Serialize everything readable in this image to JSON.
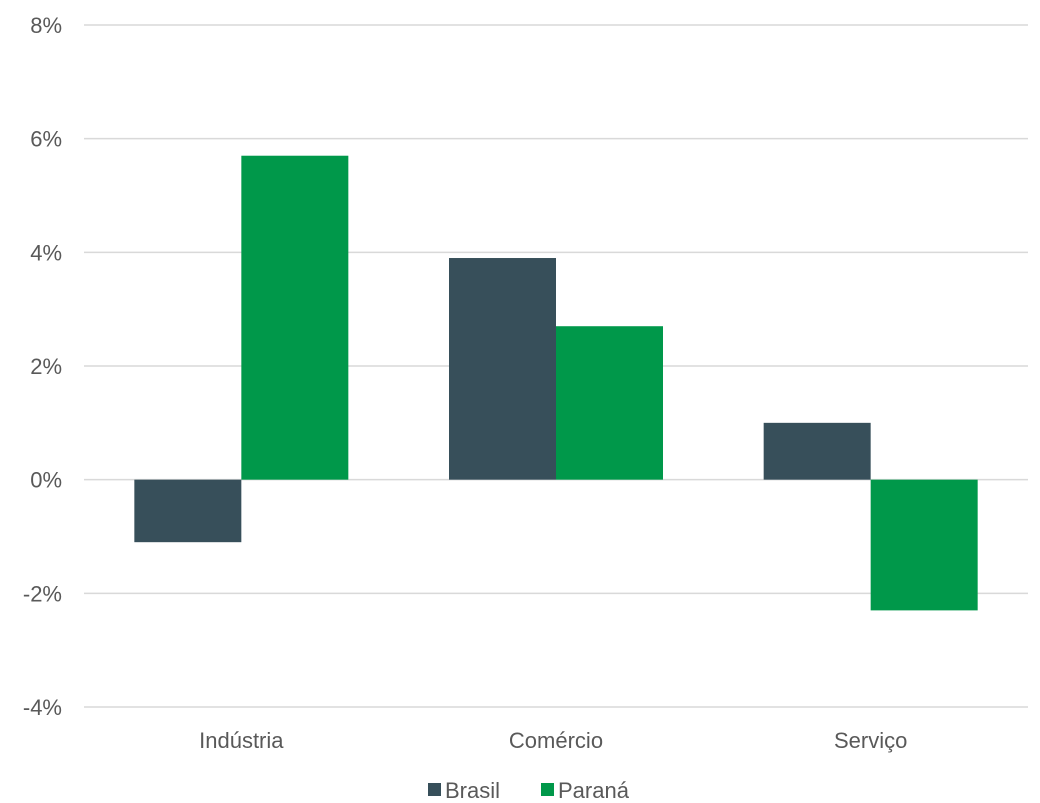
{
  "chart_data": {
    "type": "bar",
    "categories": [
      "Indústria",
      "Comércio",
      "Serviço"
    ],
    "series": [
      {
        "name": "Brasil",
        "values": [
          -1.1,
          3.9,
          1.0
        ],
        "color": "#374f5a"
      },
      {
        "name": "Paraná",
        "values": [
          5.7,
          2.7,
          -2.3
        ],
        "color": "#00984a"
      }
    ],
    "ylim": [
      -4,
      8
    ],
    "yticks": [
      8,
      6,
      4,
      2,
      0,
      -2,
      -4
    ],
    "ytick_labels": [
      "8%",
      "6%",
      "4%",
      "2%",
      "0%",
      "-2%",
      "-4%"
    ],
    "grid": true,
    "legend_position": "bottom"
  }
}
